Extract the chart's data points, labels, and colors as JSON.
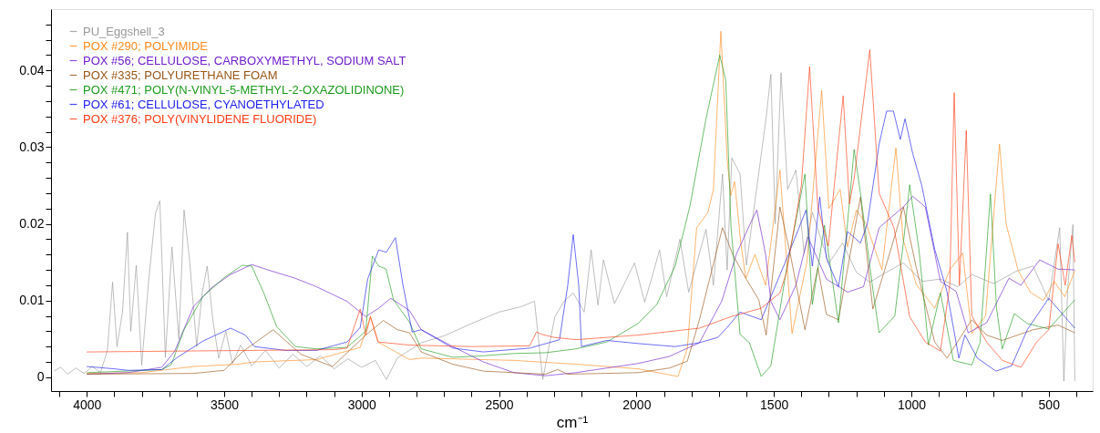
{
  "chart_data": {
    "type": "line",
    "xlabel": "cm⁻¹",
    "legend": "top left",
    "grid": false,
    "xlim": [
      4130,
      340
    ],
    "ylim": [
      -0.0018,
      0.048
    ],
    "xticks": [
      {
        "value": 4100,
        "label": null
      },
      4000,
      {
        "value": 3900,
        "label": null
      },
      {
        "value": 3800,
        "label": null
      },
      {
        "value": 3700,
        "label": null
      },
      {
        "value": 3600,
        "label": null
      },
      3500,
      {
        "value": 3400,
        "label": null
      },
      {
        "value": 3300,
        "label": null
      },
      {
        "value": 3200,
        "label": null
      },
      {
        "value": 3100,
        "label": null
      },
      3000,
      {
        "value": 2900,
        "label": null
      },
      {
        "value": 2800,
        "label": null
      },
      {
        "value": 2700,
        "label": null
      },
      {
        "value": 2600,
        "label": null
      },
      2500,
      {
        "value": 2400,
        "label": null
      },
      {
        "value": 2300,
        "label": null
      },
      {
        "value": 2200,
        "label": null
      },
      {
        "value": 2100,
        "label": null
      },
      2000,
      {
        "value": 1900,
        "label": null
      },
      {
        "value": 1800,
        "label": null
      },
      {
        "value": 1700,
        "label": null
      },
      {
        "value": 1600,
        "label": null
      },
      1500,
      {
        "value": 1400,
        "label": null
      },
      {
        "value": 1300,
        "label": null
      },
      {
        "value": 1200,
        "label": null
      },
      {
        "value": 1100,
        "label": null
      },
      1000,
      {
        "value": 900,
        "label": null
      },
      {
        "value": 800,
        "label": null
      },
      {
        "value": 700,
        "label": null
      },
      {
        "value": 600,
        "label": null
      },
      500,
      {
        "value": 400,
        "label": null
      }
    ],
    "yticks": [
      0,
      {
        "value": 0.002,
        "label": null
      },
      {
        "value": 0.004,
        "label": null
      },
      {
        "value": 0.006,
        "label": null
      },
      {
        "value": 0.008,
        "label": null
      },
      0.01,
      {
        "value": 0.012,
        "label": null
      },
      {
        "value": 0.014,
        "label": null
      },
      {
        "value": 0.016,
        "label": null
      },
      {
        "value": 0.018,
        "label": null
      },
      0.02,
      {
        "value": 0.022,
        "label": null
      },
      {
        "value": 0.024,
        "label": null
      },
      {
        "value": 0.026,
        "label": null
      },
      {
        "value": 0.028,
        "label": null
      },
      0.03,
      {
        "value": 0.032,
        "label": null
      },
      {
        "value": 0.034,
        "label": null
      },
      {
        "value": 0.036,
        "label": null
      },
      {
        "value": 0.038,
        "label": null
      },
      0.04,
      {
        "value": 0.042,
        "label": null
      },
      {
        "value": 0.044,
        "label": null
      },
      {
        "value": 0.046,
        "label": null
      }
    ],
    "series": [
      {
        "name": "PU_Eggshell_3",
        "color": "#999999",
        "x": [
          4120,
          4095,
          4070,
          4040,
          4010,
          3980,
          3950,
          3925,
          3906,
          3890,
          3870,
          3852,
          3840,
          3820,
          3800,
          3775,
          3750,
          3734,
          3714,
          3690,
          3665,
          3646,
          3626,
          3600,
          3580,
          3562,
          3541,
          3520,
          3494,
          3470,
          3440,
          3400,
          3350,
          3300,
          3250,
          3200,
          3150,
          3100,
          3050,
          3000,
          2950,
          2910,
          2870,
          2783,
          2700,
          2600,
          2500,
          2420,
          2371,
          2341,
          2297,
          2263,
          2230,
          2190,
          2165,
          2140,
          2120,
          2080,
          2040,
          2007,
          1970,
          1940,
          1916,
          1890,
          1842,
          1810,
          1747,
          1720,
          1687,
          1670,
          1653,
          1623,
          1600,
          1528,
          1511,
          1495,
          1474,
          1450,
          1420,
          1390,
          1360,
          1300,
          1250,
          1200,
          1151,
          1100,
          1029,
          960,
          894,
          830,
          780,
          700,
          620,
          557,
          500,
          475,
          460,
          445,
          430,
          412,
          405
        ],
        "values": [
          0.0008,
          0.0013,
          0.0004,
          0.0012,
          0.0005,
          0.0014,
          0.0006,
          0.0035,
          0.0124,
          0.004,
          0.0085,
          0.0189,
          0.006,
          0.0146,
          0.0016,
          0.0125,
          0.0214,
          0.023,
          0.0026,
          0.017,
          0.005,
          0.0218,
          0.0153,
          0.004,
          0.011,
          0.0145,
          0.0074,
          0.0025,
          0.006,
          0.0018,
          0.0042,
          0.0015,
          0.0035,
          0.0012,
          0.003,
          0.0014,
          0.0028,
          0.0011,
          0.0024,
          0.0013,
          0.0022,
          -0.0003,
          0.0025,
          0.0045,
          0.0054,
          0.007,
          0.0085,
          0.0092,
          0.0099,
          -0.0003,
          0.0079,
          0.0099,
          0.011,
          0.0085,
          0.0166,
          0.0094,
          0.0153,
          0.0096,
          0.0125,
          0.0149,
          0.0098,
          0.0135,
          0.0166,
          0.0105,
          0.018,
          0.0111,
          0.0193,
          0.012,
          0.0265,
          0.014,
          0.0286,
          0.0265,
          0.0146,
          0.0339,
          0.0395,
          0.02,
          0.0397,
          0.0245,
          0.027,
          0.0162,
          0.0215,
          0.0149,
          0.0175,
          0.0137,
          0.0124,
          0.0135,
          0.0149,
          0.0125,
          0.0128,
          0.0118,
          0.0134,
          0.0122,
          0.0138,
          0.0145,
          0.01,
          0.016,
          0.0195,
          -0.0005,
          0.012,
          0.0199,
          -0.0005
        ]
      },
      {
        "name": "POX #290; POLYIMIDE",
        "color": "#ff8a1c",
        "x": [
          4000,
          3800,
          3612,
          3450,
          3390,
          3164,
          3005,
          2968,
          2940,
          2826,
          2783,
          2446,
          2220,
          1994,
          1849,
          1815,
          1781,
          1740,
          1720,
          1693,
          1670,
          1657,
          1643,
          1620,
          1602,
          1569,
          1530,
          1478,
          1434,
          1380,
          1326,
          1300,
          1259,
          1232,
          1200,
          1164,
          1107,
          1056,
          1030,
          982,
          915,
          860,
          813,
          780,
          730,
          679,
          655,
          611,
          567,
          520,
          480,
          442,
          405
        ],
        "values": [
          0.0005,
          0.0006,
          0.0014,
          0.0017,
          0.002,
          0.0023,
          0.0039,
          0.0079,
          0.0046,
          0.0023,
          0.0025,
          0.0022,
          0.0017,
          0.0011,
          0.0001,
          0.0037,
          0.0195,
          0.0215,
          0.0245,
          0.0451,
          0.0284,
          0.0237,
          0.0255,
          0.0174,
          0.0129,
          0.016,
          0.012,
          0.027,
          0.0057,
          0.015,
          0.0374,
          0.022,
          0.0245,
          0.017,
          0.0218,
          0.02,
          0.014,
          0.0299,
          0.018,
          0.0121,
          0.009,
          0.014,
          0.0162,
          0.0057,
          0.008,
          0.0304,
          0.02,
          0.0139,
          0.0111,
          0.01,
          0.0125,
          0.0105,
          0.0139
        ]
      },
      {
        "name": "POX #56; CELLULOSE, CARBOXYMETHYL, SODIUM SALT",
        "color": "#7020d0",
        "x": [
          4000,
          3850,
          3727,
          3680,
          3612,
          3545,
          3477,
          3400,
          3332,
          3241,
          3164,
          3053,
          2985,
          2938,
          2894,
          2860,
          2826,
          2783,
          2668,
          2557,
          2446,
          2331,
          2220,
          2108,
          1994,
          1882,
          1771,
          1690,
          1636,
          1580,
          1562,
          1530,
          1511,
          1478,
          1420,
          1376,
          1309,
          1232,
          1174,
          1117,
          1029,
          995,
          949,
          894,
          837,
          793,
          726,
          645,
          601,
          533,
          466,
          405
        ],
        "values": [
          0.0004,
          0.0006,
          0.0013,
          0.0034,
          0.0092,
          0.0117,
          0.0134,
          0.0147,
          0.0139,
          0.0129,
          0.0118,
          0.0099,
          0.0079,
          0.009,
          0.0103,
          0.0095,
          0.0087,
          0.0062,
          0.004,
          0.002,
          0.0006,
          0.0002,
          0.0006,
          0.0012,
          0.0018,
          0.0027,
          0.0045,
          0.0099,
          0.0161,
          0.0205,
          0.0218,
          0.016,
          0.0099,
          0.0075,
          0.012,
          0.0183,
          0.0128,
          0.0111,
          0.0118,
          0.0195,
          0.0222,
          0.0236,
          0.0222,
          0.0125,
          0.0112,
          0.0058,
          0.0071,
          0.0129,
          0.012,
          0.0153,
          0.0141,
          0.014
        ]
      },
      {
        "name": "POX #335; POLYURETHANE FOAM",
        "color": "#9a5518",
        "x": [
          4000,
          3612,
          3500,
          3434,
          3322,
          3221,
          3106,
          2985,
          2921,
          2870,
          2826,
          2783,
          2668,
          2557,
          2331,
          2287,
          2250,
          1994,
          1880,
          1815,
          1771,
          1687,
          1650,
          1602,
          1555,
          1528,
          1478,
          1440,
          1387,
          1340,
          1309,
          1265,
          1185,
          1140,
          1080,
          1029,
          982,
          915,
          870,
          780,
          726,
          669,
          557,
          466,
          405
        ],
        "values": [
          0.0004,
          0.0005,
          0.0009,
          0.0033,
          0.0062,
          0.003,
          0.0014,
          0.0055,
          0.0074,
          0.0062,
          0.0058,
          0.0033,
          0.0017,
          0.0008,
          0.0004,
          0.001,
          0.0004,
          0.0006,
          0.0012,
          0.0021,
          0.0075,
          0.0195,
          0.016,
          0.0129,
          0.0101,
          0.0055,
          0.0222,
          0.016,
          0.0062,
          0.0143,
          0.0082,
          0.0075,
          0.0235,
          0.0089,
          0.016,
          0.0222,
          0.0143,
          0.0046,
          0.0025,
          0.0075,
          0.0055,
          0.0048,
          0.0062,
          0.0068,
          0.0058
        ]
      },
      {
        "name": "POX #471; POLY(N-VINYL-5-METHYL-2-OXAZOLIDINONE)",
        "color": "#1c9a1c",
        "x": [
          4000,
          3727,
          3693,
          3646,
          3578,
          3500,
          3434,
          3400,
          3356,
          3309,
          3241,
          3164,
          3053,
          2985,
          2961,
          2938,
          2911,
          2884,
          2826,
          2783,
          2668,
          2557,
          2446,
          2331,
          2220,
          2108,
          1994,
          1926,
          1859,
          1805,
          1747,
          1697,
          1675,
          1656,
          1623,
          1589,
          1546,
          1511,
          1454,
          1387,
          1360,
          1316,
          1265,
          1208,
          1185,
          1140,
          1117,
          1060,
          1029,
          1006,
          972,
          938,
          894,
          847,
          780,
          750,
          712,
          690,
          669,
          625,
          578,
          500,
          405
        ],
        "values": [
          0.0006,
          0.001,
          0.0016,
          0.0062,
          0.0105,
          0.013,
          0.0146,
          0.0145,
          0.011,
          0.0066,
          0.004,
          0.0037,
          0.0039,
          0.006,
          0.0158,
          0.0145,
          0.0141,
          0.0101,
          0.0072,
          0.0037,
          0.0026,
          0.0028,
          0.0031,
          0.0032,
          0.0037,
          0.0046,
          0.007,
          0.0095,
          0.0145,
          0.0224,
          0.0337,
          0.042,
          0.0387,
          0.0196,
          0.0056,
          0.0045,
          0.0001,
          0.0015,
          0.0141,
          0.0265,
          0.0095,
          0.0198,
          0.0071,
          0.0297,
          0.024,
          0.0115,
          0.0058,
          0.008,
          0.0175,
          0.0251,
          0.0166,
          0.0042,
          0.011,
          0.0022,
          0.0016,
          0.0045,
          0.0239,
          0.009,
          0.0037,
          0.0083,
          0.007,
          0.0063,
          0.0101
        ]
      },
      {
        "name": "POX #61; CELLULOSE, CYANOETHYLATED",
        "color": "#1c1cf0",
        "x": [
          4000,
          3900,
          3850,
          3727,
          3670,
          3578,
          3477,
          3423,
          3390,
          3275,
          3164,
          3053,
          3005,
          2978,
          2938,
          2910,
          2877,
          2850,
          2816,
          2783,
          2668,
          2557,
          2388,
          2280,
          2250,
          2230,
          2210,
          2200,
          2108,
          1994,
          1859,
          1771,
          1704,
          1670,
          1623,
          1546,
          1454,
          1383,
          1360,
          1333,
          1309,
          1265,
          1232,
          1185,
          1160,
          1117,
          1090,
          1065,
          1040,
          1023,
          995,
          962,
          915,
          871,
          827,
          805,
          760,
          692,
          635,
          578,
          500,
          442,
          405
        ],
        "values": [
          0.0014,
          0.0011,
          0.0009,
          0.001,
          0.0026,
          0.0047,
          0.0064,
          0.0055,
          0.004,
          0.0035,
          0.0035,
          0.0046,
          0.0065,
          0.0128,
          0.0166,
          0.0163,
          0.0182,
          0.0121,
          0.0059,
          0.0062,
          0.0038,
          0.0033,
          0.0038,
          0.0049,
          0.012,
          0.0186,
          0.012,
          0.004,
          0.0048,
          0.0044,
          0.004,
          0.0045,
          0.0052,
          0.0065,
          0.0085,
          0.0075,
          0.0154,
          0.0218,
          0.0145,
          0.0235,
          0.0155,
          0.0118,
          0.019,
          0.0175,
          0.02,
          0.0304,
          0.0347,
          0.0347,
          0.031,
          0.0337,
          0.0292,
          0.025,
          0.0167,
          0.0113,
          0.0025,
          0.0055,
          0.0025,
          0.0008,
          0.0015,
          0.0062,
          0.0103,
          0.0079,
          0.0064
        ]
      },
      {
        "name": "POX #376; POLY(VINYLIDENE FLUORIDE)",
        "color": "#ff3c14",
        "x": [
          4000,
          3700,
          3400,
          3100,
          3053,
          3005,
          2985,
          2968,
          2940,
          2826,
          2600,
          2388,
          2364,
          2345,
          2300,
          2220,
          1994,
          1771,
          1656,
          1546,
          1478,
          1454,
          1400,
          1370,
          1340,
          1302,
          1248,
          1225,
          1208,
          1151,
          1117,
          1063,
          1006,
          949,
          894,
          860,
          844,
          825,
          800,
          780,
          726,
          669,
          601,
          544,
          500,
          466,
          440,
          416,
          405
        ],
        "values": [
          0.0033,
          0.0034,
          0.0035,
          0.0036,
          0.0038,
          0.0089,
          0.0055,
          0.0079,
          0.0046,
          0.0042,
          0.004,
          0.0041,
          0.0059,
          0.0056,
          0.0052,
          0.0049,
          0.0055,
          0.0064,
          0.0079,
          0.009,
          0.011,
          0.0137,
          0.025,
          0.0405,
          0.0221,
          0.0171,
          0.0367,
          0.0226,
          0.0259,
          0.0427,
          0.024,
          0.0195,
          0.0079,
          0.0046,
          0.0034,
          0.012,
          0.0371,
          0.012,
          0.0322,
          0.008,
          0.0046,
          0.0022,
          0.0013,
          0.0046,
          0.0062,
          0.0174,
          0.012,
          0.0185,
          0.015
        ]
      }
    ]
  }
}
